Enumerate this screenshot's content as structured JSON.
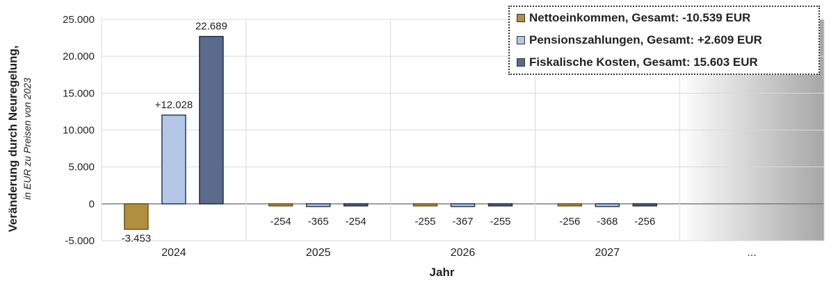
{
  "chart_data": {
    "type": "bar",
    "categories": [
      "2024",
      "2025",
      "2026",
      "2027",
      "..."
    ],
    "series": [
      {
        "name": "Nettoeinkommen, Gesamt: -10.539 EUR",
        "color": "#b09040",
        "stroke": "#6b5414",
        "values": [
          -3453,
          -254,
          -255,
          -256,
          null
        ],
        "labels": [
          "-3.453",
          "-254",
          "-255",
          "-256",
          ""
        ]
      },
      {
        "name": "Pensionszahlungen, Gesamt: +2.609 EUR",
        "color": "#b4c7e7",
        "stroke": "#1f3864",
        "values": [
          12028,
          -365,
          -367,
          -368,
          null
        ],
        "labels": [
          "+12.028",
          "-365",
          "-367",
          "-368",
          ""
        ]
      },
      {
        "name": "Fiskalische Kosten, Gesamt: 15.603 EUR",
        "color": "#5b6b8c",
        "stroke": "#1f2a44",
        "values": [
          22689,
          -254,
          -255,
          -256,
          null
        ],
        "labels": [
          "22.689",
          "-254",
          "-255",
          "-256",
          ""
        ]
      }
    ],
    "yticks": [
      "25.000",
      "20.000",
      "15.000",
      "10.000",
      "5.000",
      "0",
      "-5.000"
    ],
    "ylim": [
      -5000,
      25000
    ],
    "xlabel": "Jahr",
    "ylabel": "Veränderung durch Neuregelung,",
    "ylabel_sub": "in EUR zu Preisen von 2023",
    "grid": true,
    "legend_position": "top-right"
  }
}
